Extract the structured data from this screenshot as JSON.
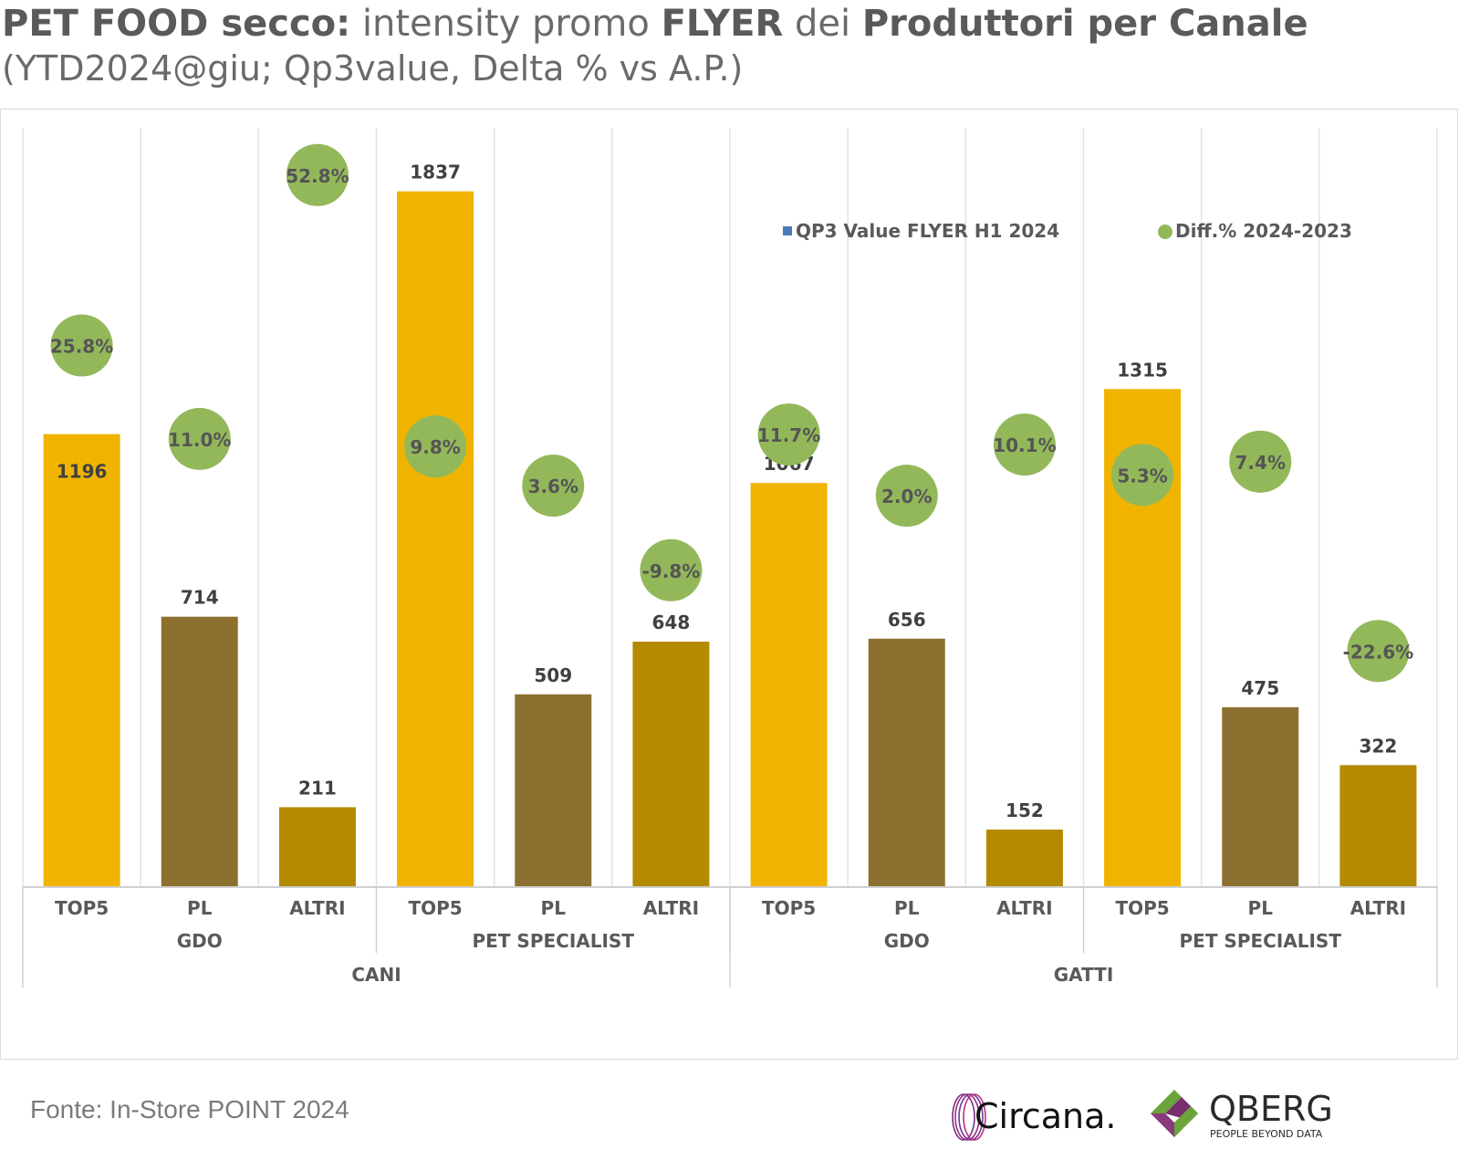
{
  "title": {
    "part1_bold": "PET FOOD secco:",
    "part2": " intensity promo ",
    "part3_bold": "FLYER",
    "part4": " dei ",
    "part5_bold": "Produttori per Canale"
  },
  "subtitle": "(YTD2024@giu; Qp3value, Delta % vs A.P.)",
  "source": "Fonte: In-Store POINT 2024",
  "logos": {
    "circana": "Circana.",
    "qberg": "QBERG",
    "qberg_tagline": "PEOPLE BEYOND DATA"
  },
  "colors": {
    "top5": "#f0b400",
    "pl": "#8c7030",
    "altri": "#b38a00",
    "diff": "#93b85a",
    "legend_bar": "#4a7ab8"
  },
  "chart_data": {
    "type": "bar",
    "legend": [
      "QP3 Value FLYER H1 2024",
      "Diff.% 2024-2023"
    ],
    "legend_position": "top-right",
    "categories": [
      {
        "level1": "CANI",
        "level2": "GDO",
        "level3": "TOP5"
      },
      {
        "level1": "CANI",
        "level2": "GDO",
        "level3": "PL"
      },
      {
        "level1": "CANI",
        "level2": "GDO",
        "level3": "ALTRI"
      },
      {
        "level1": "CANI",
        "level2": "PET SPECIALIST",
        "level3": "TOP5"
      },
      {
        "level1": "CANI",
        "level2": "PET SPECIALIST",
        "level3": "PL"
      },
      {
        "level1": "CANI",
        "level2": "PET SPECIALIST",
        "level3": "ALTRI"
      },
      {
        "level1": "GATTI",
        "level2": "GDO",
        "level3": "TOP5"
      },
      {
        "level1": "GATTI",
        "level2": "GDO",
        "level3": "PL"
      },
      {
        "level1": "GATTI",
        "level2": "GDO",
        "level3": "ALTRI"
      },
      {
        "level1": "GATTI",
        "level2": "PET SPECIALIST",
        "level3": "TOP5"
      },
      {
        "level1": "GATTI",
        "level2": "PET SPECIALIST",
        "level3": "PL"
      },
      {
        "level1": "GATTI",
        "level2": "PET SPECIALIST",
        "level3": "ALTRI"
      }
    ],
    "level1_groups": [
      "CANI",
      "GATTI"
    ],
    "level2_groups": [
      "GDO",
      "PET SPECIALIST",
      "GDO",
      "PET SPECIALIST"
    ],
    "series": [
      {
        "name": "QP3 Value FLYER H1 2024",
        "values": [
          1196,
          714,
          211,
          1837,
          509,
          648,
          1067,
          656,
          152,
          1315,
          475,
          322
        ]
      },
      {
        "name": "Diff.% 2024-2023",
        "values": [
          25.8,
          11.0,
          52.8,
          9.8,
          3.6,
          -9.8,
          11.7,
          2.0,
          10.1,
          5.3,
          7.4,
          -22.6
        ]
      }
    ],
    "value_labels": [
      "1196",
      "714",
      "211",
      "1837",
      "509",
      "648",
      "1067",
      "656",
      "152",
      "1315",
      "475",
      "322"
    ],
    "diff_labels": [
      "25.8%",
      "11.0%",
      "52.8%",
      "9.8%",
      "3.6%",
      "-9.8%",
      "11.7%",
      "2.0%",
      "10.1%",
      "5.3%",
      "7.4%",
      "-22.6%"
    ],
    "ylim_bars": [
      0,
      2000
    ],
    "ylim_diff": [
      -60,
      60
    ],
    "grid": false
  }
}
